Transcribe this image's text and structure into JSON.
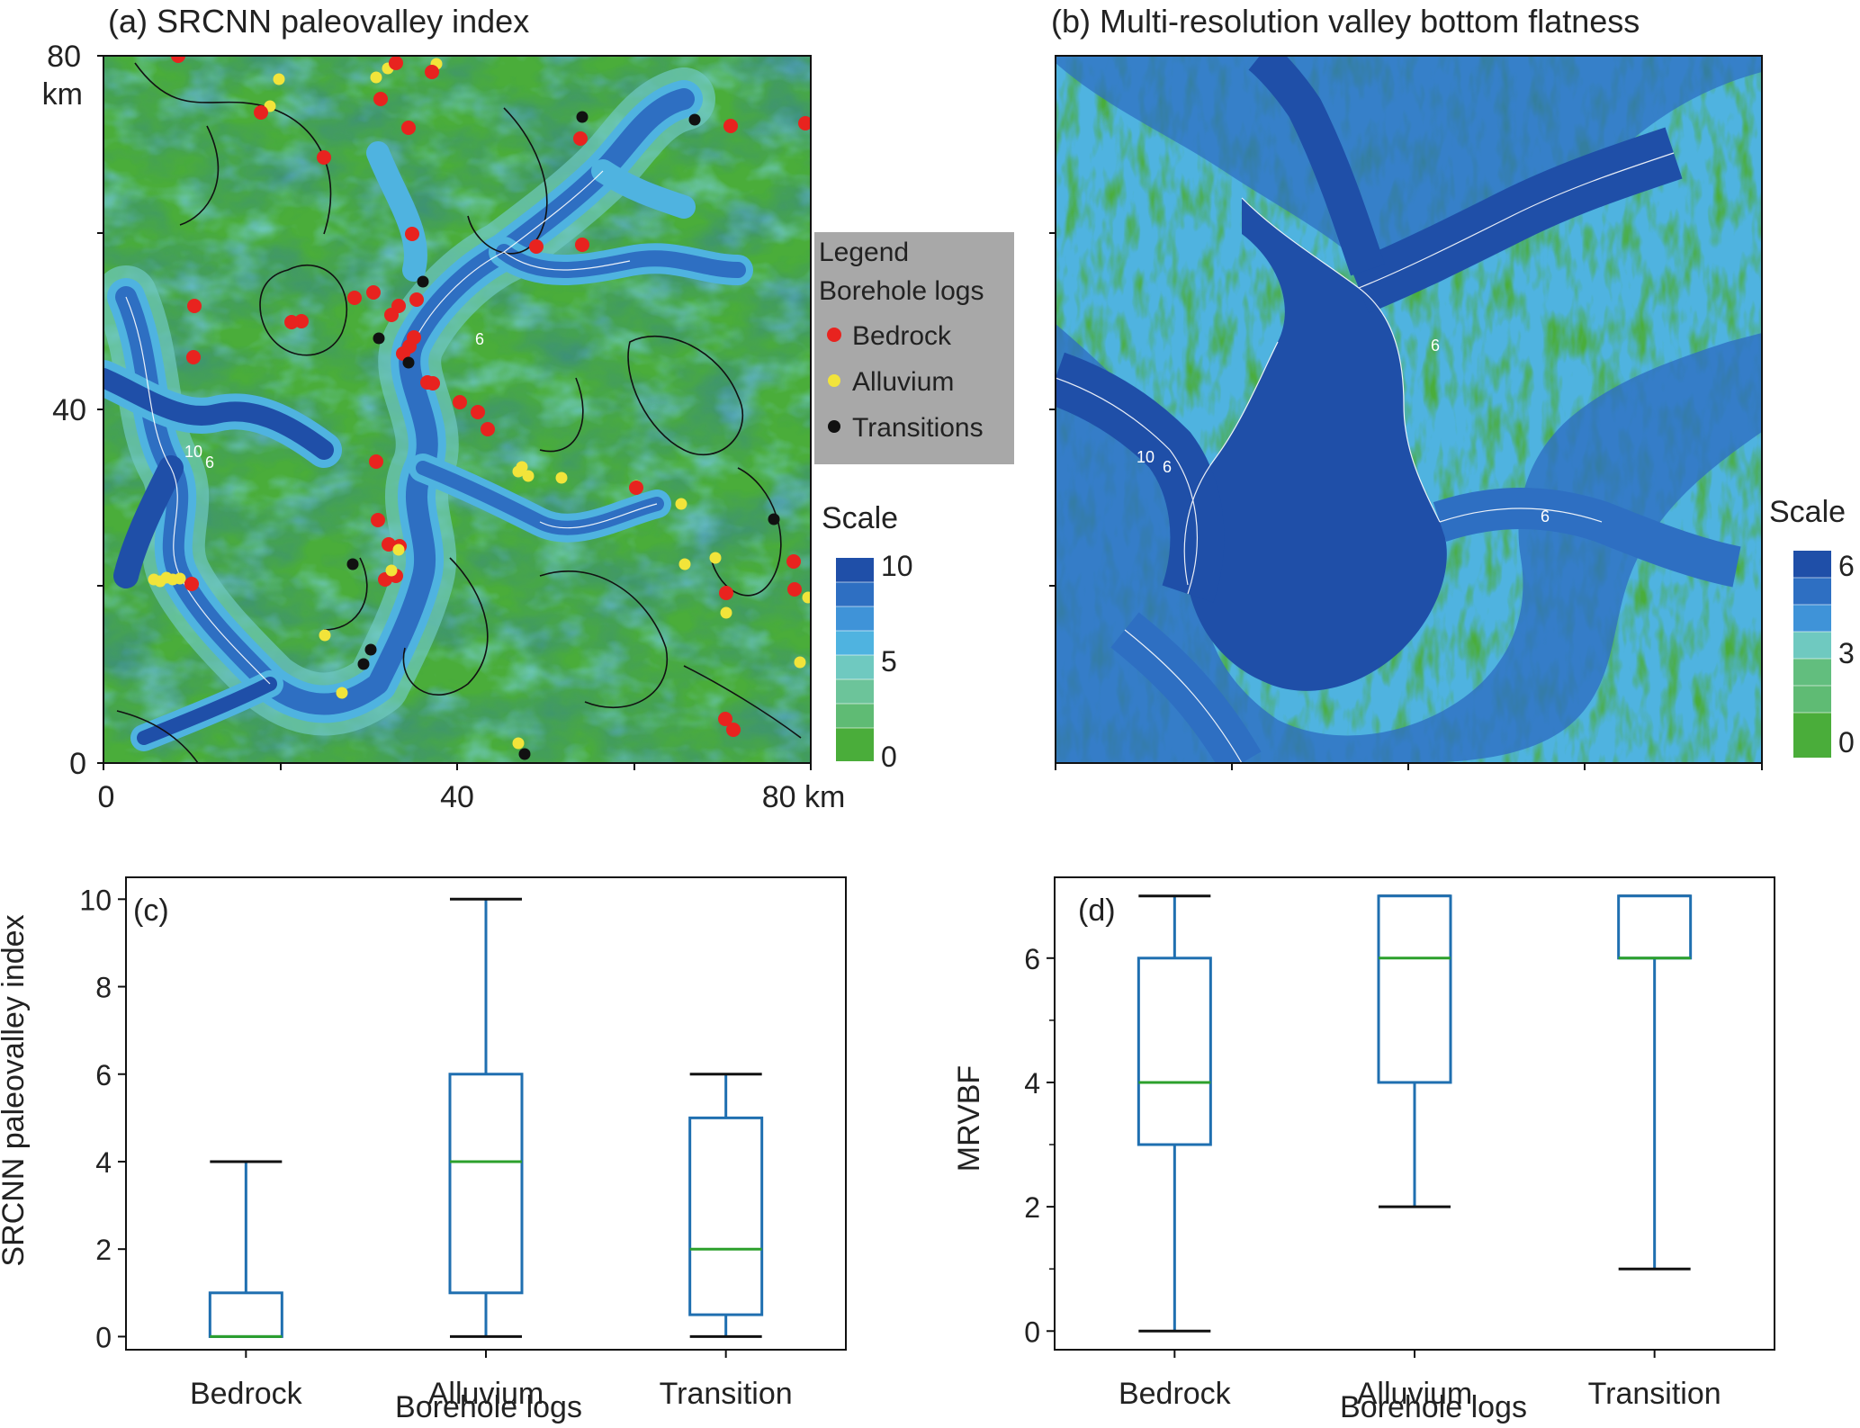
{
  "colors": {
    "map_green": "#4aad3a",
    "map_light_green": "#62be7e",
    "map_teal": "#6fc9c0",
    "map_light_blue": "#4fb3e0",
    "map_mid_blue": "#2e6fc2",
    "map_dark_blue": "#1f4fa8",
    "bedrock_dot": "#e8231f",
    "alluvium_dot": "#f2e43a",
    "transition_dot": "#111111",
    "legend_bg": "#a8a8a8",
    "box_edge": "#1f6fb0",
    "median_line": "#2ca02c",
    "whisker_cap": "#111111",
    "contour_white": "#ffffff",
    "contour_black": "#111111"
  },
  "panel_a": {
    "title": "(a) SRCNN paleovalley index",
    "y_ticks": [
      {
        "label": "0"
      },
      {
        "label": "40"
      },
      {
        "label": "80"
      }
    ],
    "y_unit": "km",
    "x_ticks": [
      {
        "label": "0"
      },
      {
        "label": "40"
      },
      {
        "label": "80 km"
      }
    ],
    "contour_labels": [
      "6",
      "10",
      "6"
    ],
    "legend": {
      "title": "Legend",
      "subtitle": "Borehole logs",
      "items": [
        {
          "label": "Bedrock",
          "color_key": "bedrock_dot"
        },
        {
          "label": "Alluvium",
          "color_key": "alluvium_dot"
        },
        {
          "label": "Transitions",
          "color_key": "transition_dot"
        }
      ]
    },
    "scale": {
      "title": "Scale",
      "labels": [
        "10",
        "5",
        "0"
      ]
    }
  },
  "panel_b": {
    "title": "(b) Multi-resolution valley bottom flatness",
    "contour_labels": [
      "6",
      "10",
      "6",
      "6"
    ],
    "scale": {
      "title": "Scale",
      "labels": [
        "6",
        "3",
        "0"
      ]
    }
  },
  "chart_data": [
    {
      "type": "box",
      "panel_label": "(c)",
      "title": "",
      "xlabel": "Borehole logs",
      "ylabel": "SRCNN paleovalley index",
      "ylim": [
        -0.3,
        10.5
      ],
      "yticks": [
        0,
        2,
        4,
        6,
        8,
        10
      ],
      "categories": [
        "Bedrock",
        "Alluvium",
        "Transition"
      ],
      "boxes": [
        {
          "category": "Bedrock",
          "whisker_low": 0,
          "q1": 0,
          "median": 0,
          "q3": 1,
          "whisker_high": 4
        },
        {
          "category": "Alluvium",
          "whisker_low": 0,
          "q1": 1,
          "median": 4,
          "q3": 6,
          "whisker_high": 10
        },
        {
          "category": "Transition",
          "whisker_low": 0,
          "q1": 0.5,
          "median": 2,
          "q3": 5,
          "whisker_high": 6
        }
      ]
    },
    {
      "type": "box",
      "panel_label": "(d)",
      "title": "",
      "xlabel": "Borehole logs",
      "ylabel": "MRVBF",
      "ylim": [
        -0.3,
        7.3
      ],
      "yticks": [
        0,
        2,
        4,
        6
      ],
      "categories": [
        "Bedrock",
        "Alluvium",
        "Transition"
      ],
      "boxes": [
        {
          "category": "Bedrock",
          "whisker_low": 0,
          "q1": 3,
          "median": 4,
          "q3": 6,
          "whisker_high": 7
        },
        {
          "category": "Alluvium",
          "whisker_low": 2,
          "q1": 4,
          "median": 6,
          "q3": 7,
          "whisker_high": 7
        },
        {
          "category": "Transition",
          "whisker_low": 1,
          "q1": 6,
          "median": 6,
          "q3": 7,
          "whisker_high": 7
        }
      ]
    }
  ]
}
